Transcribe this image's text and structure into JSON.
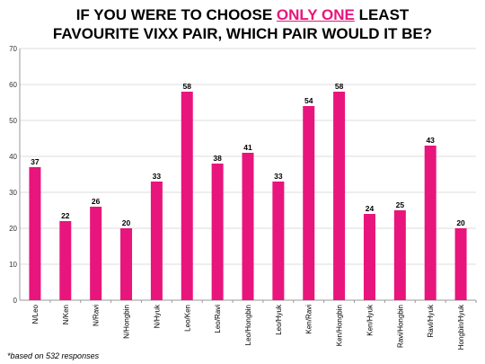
{
  "title": {
    "line1_before": "IF YOU WERE TO CHOOSE ",
    "line1_highlight": "ONLY ONE",
    "line1_after": " LEAST",
    "line2": "FAVOURITE VIXX PAIR, WHICH PAIR WOULD IT BE?"
  },
  "footnote": "*based on 532 responses",
  "colors": {
    "bar": "#e8157d",
    "highlight": "#e8157d",
    "axis": "#999999",
    "grid": "#bbbbbb"
  },
  "chart_data": {
    "type": "bar",
    "title": "IF YOU WERE TO CHOOSE ONLY ONE LEAST FAVOURITE VIXX PAIR, WHICH PAIR WOULD IT BE?",
    "categories": [
      "N/Leo",
      "N/Ken",
      "N/Ravi",
      "N/Hongbin",
      "N/Hyuk",
      "Leo/Ken",
      "Leo/Ravi",
      "Leo/Hongbin",
      "Leo/Hyuk",
      "Ken/Ravi",
      "Ken/Hongbin",
      "Ken/Hyuk",
      "Ravi/Hongbin",
      "Ravi/Hyuk",
      "Hongbin/Hyuk"
    ],
    "values": [
      37,
      22,
      26,
      20,
      33,
      58,
      38,
      41,
      33,
      54,
      58,
      24,
      25,
      43,
      20
    ],
    "yticks": [
      0,
      10,
      20,
      30,
      40,
      50,
      60,
      70
    ],
    "ylim": [
      0,
      70
    ],
    "xlabel": "",
    "ylabel": "",
    "grid": true,
    "data_labels": true
  }
}
